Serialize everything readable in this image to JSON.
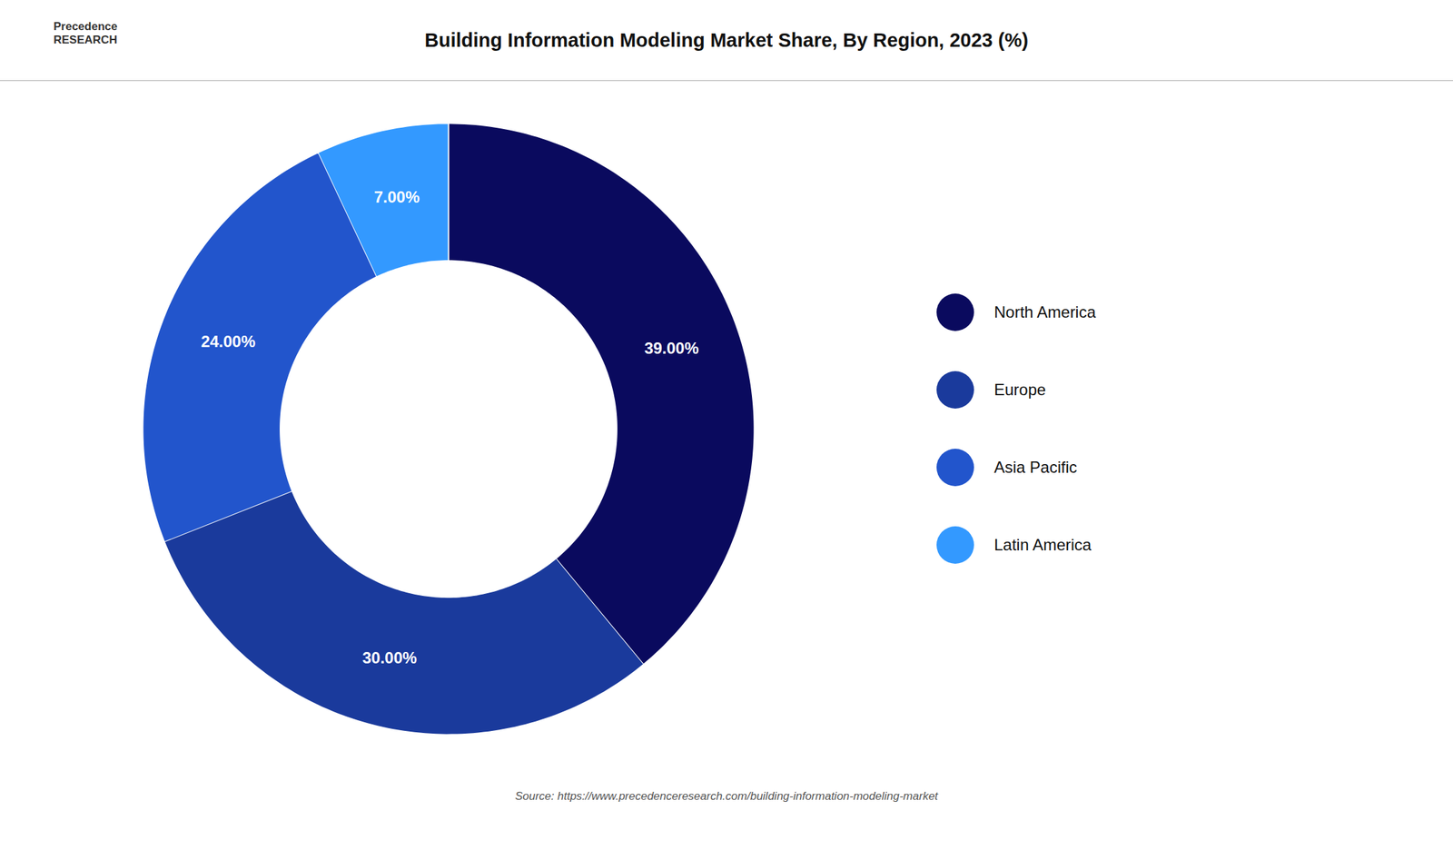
{
  "chart_data": {
    "type": "donut",
    "title": "Building Information Modeling Market Share, By Region, 2023 (%)",
    "categories": [
      "North America",
      "Europe",
      "Asia Pacific",
      "Latin America"
    ],
    "values": [
      39.0,
      30.0,
      24.0,
      7.0
    ],
    "value_labels": [
      "39.00%",
      "30.00%",
      "24.00%",
      "7.00%"
    ],
    "colors": [
      "#0a0a5e",
      "#1a3a9c",
      "#2255cc",
      "#3399ff"
    ],
    "data_labels": true,
    "legend": "right",
    "annotations": [
      "Precedence\nRESEARCH",
      "Source: https://www.precedenceresearch.com/building-information-modeling-market"
    ]
  }
}
